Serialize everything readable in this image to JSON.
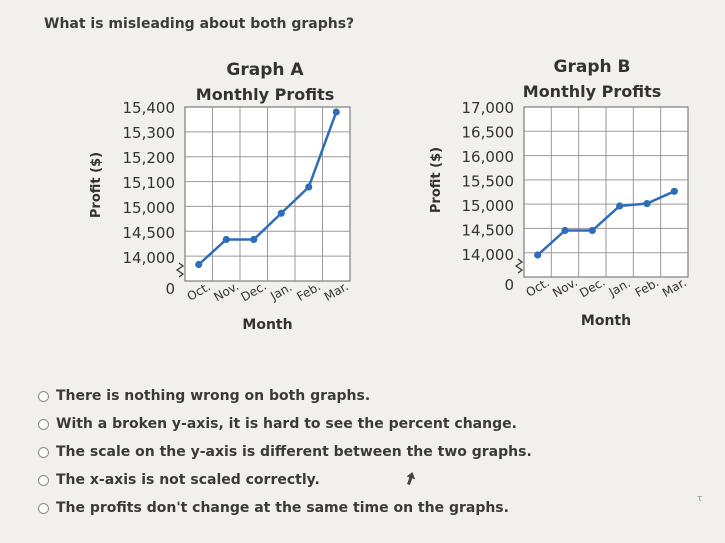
{
  "question": "What is misleading about both graphs?",
  "chart_data": [
    {
      "type": "line",
      "title": "Graph A",
      "subtitle": "Monthly Profits",
      "xlabel": "Month",
      "ylabel": "Profit ($)",
      "categories": [
        "Oct.",
        "Nov.",
        "Dec.",
        "Jan.",
        "Feb.",
        "Mar."
      ],
      "values": [
        13950,
        14450,
        14450,
        14975,
        15100,
        15400
      ],
      "ytick_labels": [
        "15,400",
        "15,300",
        "15,200",
        "15,100",
        "15,000",
        "14,500",
        "14,000",
        "0"
      ],
      "broken_axis": true,
      "grid": true,
      "line_color": "#2f6db8"
    },
    {
      "type": "line",
      "title": "Graph B",
      "subtitle": "Monthly Profits",
      "xlabel": "Month",
      "ylabel": "Profit ($)",
      "categories": [
        "Oct.",
        "Nov.",
        "Dec.",
        "Jan.",
        "Feb.",
        "Mar."
      ],
      "values": [
        14000,
        14500,
        14500,
        15000,
        15050,
        15300
      ],
      "ytick_labels": [
        "17,000",
        "16,500",
        "16,000",
        "15,500",
        "15,000",
        "14,500",
        "14,000",
        "0"
      ],
      "broken_axis": true,
      "grid": true,
      "line_color": "#2f6db8"
    }
  ],
  "choices": [
    "There is nothing wrong on both graphs.",
    "With a broken y-axis, it is hard to see the percent change.",
    "The scale on the y-axis is different between the two graphs.",
    "The x-axis is not scaled correctly.",
    "The profits don't change at the same time on the graphs."
  ],
  "corner_glyph": "τ"
}
